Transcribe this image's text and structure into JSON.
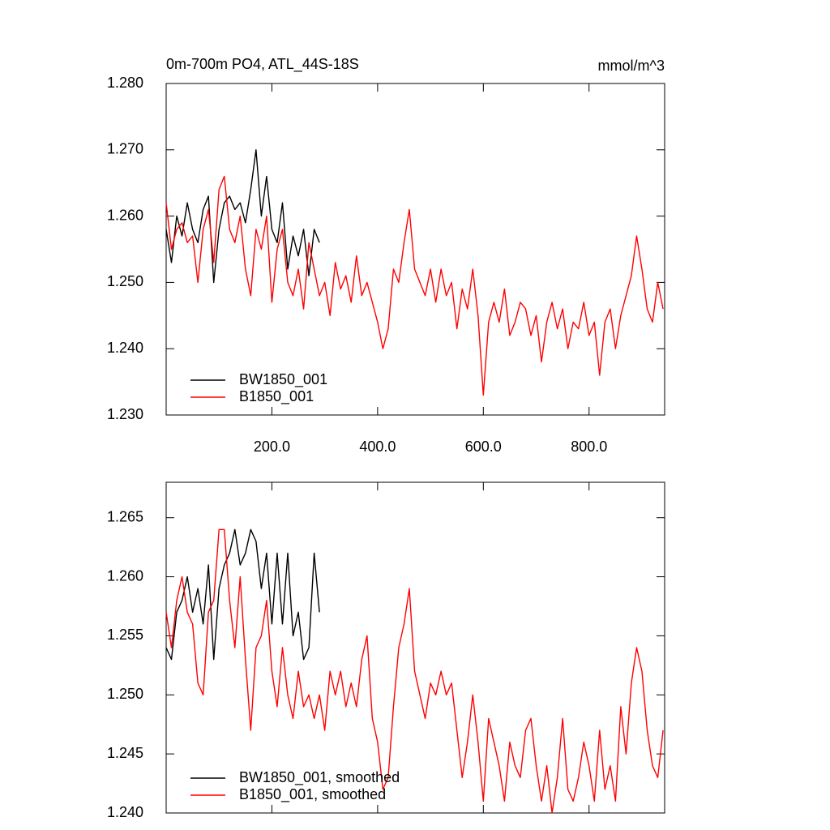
{
  "chart_data": [
    {
      "type": "line",
      "title": "0m-700m PO4, ATL_44S-18S",
      "units_label": "mmol/m^3",
      "xlim": [
        0,
        943
      ],
      "ylim": [
        1.23,
        1.28
      ],
      "xticks": [
        {
          "value": 200,
          "label": "200.0"
        },
        {
          "value": 400,
          "label": "400.0"
        },
        {
          "value": 600,
          "label": "600.0"
        },
        {
          "value": 800,
          "label": "800.0"
        }
      ],
      "yticks": [
        {
          "value": 1.23,
          "label": "1.230"
        },
        {
          "value": 1.24,
          "label": "1.240"
        },
        {
          "value": 1.25,
          "label": "1.250"
        },
        {
          "value": 1.26,
          "label": "1.260"
        },
        {
          "value": 1.27,
          "label": "1.270"
        },
        {
          "value": 1.28,
          "label": "1.280"
        }
      ],
      "legend": "lower left",
      "x": [
        0,
        10,
        20,
        30,
        40,
        50,
        60,
        70,
        80,
        90,
        100,
        110,
        120,
        130,
        140,
        150,
        160,
        170,
        180,
        190,
        200,
        210,
        220,
        230,
        240,
        250,
        260,
        270,
        280,
        290,
        300,
        310,
        320,
        330,
        340,
        350,
        360,
        370,
        380,
        390,
        400,
        410,
        420,
        430,
        440,
        450,
        460,
        470,
        480,
        490,
        500,
        510,
        520,
        530,
        540,
        550,
        560,
        570,
        580,
        590,
        600,
        610,
        620,
        630,
        640,
        650,
        660,
        670,
        680,
        690,
        700,
        710,
        720,
        730,
        740,
        750,
        760,
        770,
        780,
        790,
        800,
        810,
        820,
        830,
        840,
        850,
        860,
        870,
        880,
        890,
        900,
        910,
        920,
        930,
        940
      ],
      "series": [
        {
          "name": "BW1850_001",
          "color": "#000000",
          "values": [
            1.258,
            1.253,
            1.26,
            1.257,
            1.262,
            1.258,
            1.256,
            1.261,
            1.263,
            1.25,
            1.258,
            1.262,
            1.263,
            1.261,
            1.262,
            1.259,
            1.264,
            1.27,
            1.26,
            1.266,
            1.258,
            1.256,
            1.262,
            1.252,
            1.257,
            1.254,
            1.258,
            1.251,
            1.258,
            1.256,
            null,
            null,
            null,
            null,
            null,
            null,
            null,
            null,
            null,
            null,
            null,
            null,
            null,
            null,
            null,
            null,
            null,
            null,
            null,
            null,
            null,
            null,
            null,
            null,
            null,
            null,
            null,
            null,
            null,
            null,
            null,
            null,
            null,
            null,
            null,
            null,
            null,
            null,
            null,
            null,
            null,
            null,
            null,
            null,
            null,
            null,
            null,
            null,
            null,
            null,
            null,
            null,
            null,
            null,
            null,
            null,
            null,
            null,
            null,
            null,
            null,
            null,
            null,
            null,
            null
          ]
        },
        {
          "name": "B1850_001",
          "color": "#ff0000",
          "values": [
            1.262,
            1.255,
            1.258,
            1.259,
            1.256,
            1.257,
            1.25,
            1.258,
            1.261,
            1.253,
            1.264,
            1.266,
            1.258,
            1.256,
            1.26,
            1.252,
            1.248,
            1.258,
            1.255,
            1.26,
            1.247,
            1.255,
            1.258,
            1.25,
            1.248,
            1.252,
            1.246,
            1.256,
            1.252,
            1.248,
            1.25,
            1.245,
            1.253,
            1.249,
            1.251,
            1.247,
            1.254,
            1.248,
            1.25,
            1.247,
            1.244,
            1.24,
            1.243,
            1.252,
            1.25,
            1.256,
            1.261,
            1.252,
            1.25,
            1.248,
            1.252,
            1.247,
            1.252,
            1.248,
            1.25,
            1.243,
            1.249,
            1.246,
            1.252,
            1.245,
            1.233,
            1.244,
            1.247,
            1.244,
            1.249,
            1.242,
            1.244,
            1.247,
            1.246,
            1.242,
            1.245,
            1.238,
            1.244,
            1.247,
            1.243,
            1.246,
            1.24,
            1.244,
            1.243,
            1.247,
            1.242,
            1.244,
            1.236,
            1.244,
            1.246,
            1.24,
            1.245,
            1.248,
            1.251,
            1.257,
            1.252,
            1.246,
            1.244,
            1.25,
            1.246
          ]
        }
      ]
    },
    {
      "type": "line",
      "xlim": [
        0,
        943
      ],
      "ylim": [
        1.24,
        1.268
      ],
      "xticks": [
        200,
        400,
        600,
        800
      ],
      "yticks": [
        {
          "value": 1.24,
          "label": "1.240"
        },
        {
          "value": 1.245,
          "label": "1.245"
        },
        {
          "value": 1.25,
          "label": "1.250"
        },
        {
          "value": 1.255,
          "label": "1.255"
        },
        {
          "value": 1.26,
          "label": "1.260"
        },
        {
          "value": 1.265,
          "label": "1.265"
        }
      ],
      "legend": "lower left",
      "x": [
        0,
        10,
        20,
        30,
        40,
        50,
        60,
        70,
        80,
        90,
        100,
        110,
        120,
        130,
        140,
        150,
        160,
        170,
        180,
        190,
        200,
        210,
        220,
        230,
        240,
        250,
        260,
        270,
        280,
        290,
        300,
        310,
        320,
        330,
        340,
        350,
        360,
        370,
        380,
        390,
        400,
        410,
        420,
        430,
        440,
        450,
        460,
        470,
        480,
        490,
        500,
        510,
        520,
        530,
        540,
        550,
        560,
        570,
        580,
        590,
        600,
        610,
        620,
        630,
        640,
        650,
        660,
        670,
        680,
        690,
        700,
        710,
        720,
        730,
        740,
        750,
        760,
        770,
        780,
        790,
        800,
        810,
        820,
        830,
        840,
        850,
        860,
        870,
        880,
        890,
        900,
        910,
        920,
        930,
        940
      ],
      "series": [
        {
          "name": "BW1850_001, smoothed",
          "color": "#000000",
          "values": [
            1.254,
            1.253,
            1.257,
            1.258,
            1.26,
            1.257,
            1.259,
            1.256,
            1.261,
            1.253,
            1.259,
            1.261,
            1.262,
            1.264,
            1.261,
            1.262,
            1.264,
            1.263,
            1.259,
            1.262,
            1.256,
            1.262,
            1.256,
            1.262,
            1.255,
            1.257,
            1.253,
            1.254,
            1.262,
            1.257,
            null,
            null,
            null,
            null,
            null,
            null,
            null,
            null,
            null,
            null,
            null,
            null,
            null,
            null,
            null,
            null,
            null,
            null,
            null,
            null,
            null,
            null,
            null,
            null,
            null,
            null,
            null,
            null,
            null,
            null,
            null,
            null,
            null,
            null,
            null,
            null,
            null,
            null,
            null,
            null,
            null,
            null,
            null,
            null,
            null,
            null,
            null,
            null,
            null,
            null,
            null,
            null,
            null,
            null,
            null,
            null,
            null,
            null,
            null,
            null,
            null,
            null,
            null,
            null,
            null
          ]
        },
        {
          "name": "B1850_001, smoothed",
          "color": "#ff0000",
          "values": [
            1.257,
            1.254,
            1.258,
            1.26,
            1.257,
            1.256,
            1.251,
            1.25,
            1.257,
            1.258,
            1.264,
            1.264,
            1.258,
            1.254,
            1.26,
            1.253,
            1.247,
            1.254,
            1.255,
            1.258,
            1.252,
            1.249,
            1.254,
            1.25,
            1.248,
            1.252,
            1.249,
            1.25,
            1.248,
            1.25,
            1.247,
            1.252,
            1.25,
            1.252,
            1.249,
            1.251,
            1.249,
            1.253,
            1.255,
            1.248,
            1.246,
            1.242,
            1.243,
            1.249,
            1.254,
            1.256,
            1.259,
            1.252,
            1.25,
            1.248,
            1.251,
            1.25,
            1.252,
            1.25,
            1.251,
            1.247,
            1.243,
            1.246,
            1.25,
            1.246,
            1.241,
            1.248,
            1.246,
            1.244,
            1.241,
            1.246,
            1.244,
            1.243,
            1.247,
            1.248,
            1.244,
            1.241,
            1.244,
            1.24,
            1.243,
            1.248,
            1.242,
            1.241,
            1.243,
            1.246,
            1.244,
            1.241,
            1.247,
            1.242,
            1.244,
            1.241,
            1.249,
            1.245,
            1.251,
            1.254,
            1.252,
            1.247,
            1.244,
            1.243,
            1.247
          ]
        }
      ]
    }
  ]
}
